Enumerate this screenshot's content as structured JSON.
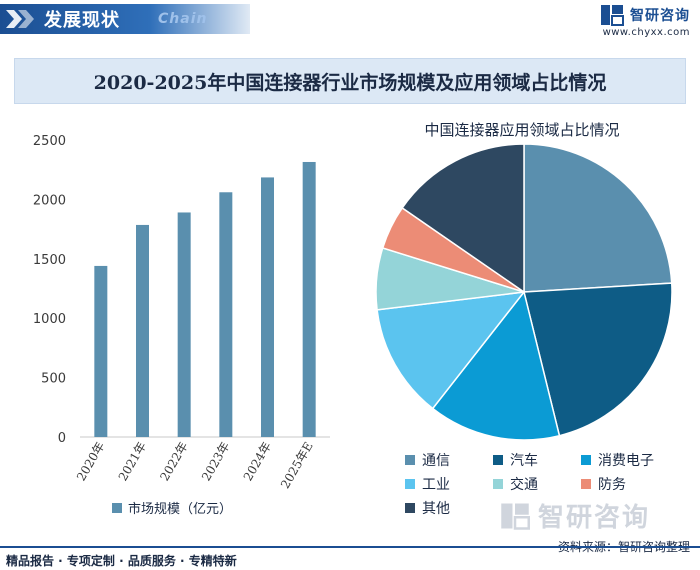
{
  "header": {
    "title": "发展现状",
    "subtitle": "Chain",
    "brand_name": "智研咨询",
    "brand_url": "www.chyxx.com"
  },
  "banner": {
    "title": "2020-2025年中国连接器行业市场规模及应用领域占比情况"
  },
  "chart_data": [
    {
      "type": "bar",
      "title": "",
      "categories": [
        "2020年",
        "2021年",
        "2022年",
        "2023年",
        "2024年",
        "2025年E"
      ],
      "series": [
        {
          "name": "市场规模（亿元）",
          "values": [
            1440,
            1785,
            1890,
            2060,
            2185,
            2315
          ]
        }
      ],
      "ylim": [
        0,
        2500
      ],
      "yticks": [
        0,
        500,
        1000,
        1500,
        2000,
        2500
      ],
      "xlabel": "",
      "ylabel": "",
      "grid": false,
      "legend": "bottom",
      "color": "#5a8fae"
    },
    {
      "type": "pie",
      "title": "中国连接器应用领域占比情况",
      "categories": [
        "通信",
        "汽车",
        "消费电子",
        "工业",
        "交通",
        "防务",
        "其他"
      ],
      "values": [
        25,
        23,
        15,
        13,
        7,
        5,
        16
      ],
      "colors": [
        "#5a8fae",
        "#0e5c86",
        "#0b9bd4",
        "#5bc4ef",
        "#94d4d8",
        "#ec8c76",
        "#2e4861"
      ],
      "legend": "bottom"
    }
  ],
  "footer": {
    "left": "精品报告 · 专项定制 · 品质服务 · 专精特新",
    "source": "资料来源：智研咨询整理",
    "watermark": "智研咨询"
  }
}
